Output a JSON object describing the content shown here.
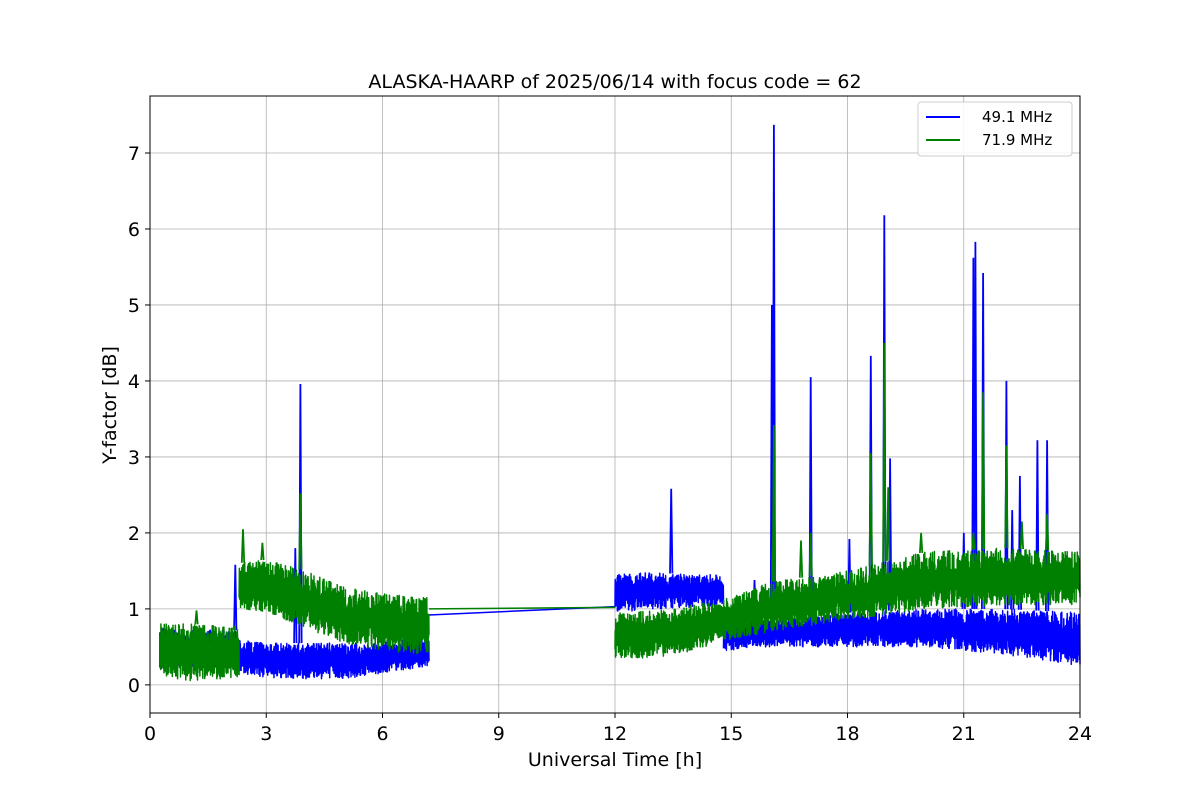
{
  "chart_data": {
    "type": "line",
    "title": "ALASKA-HAARP of 2025/06/14 with focus code = 62",
    "xlabel": "Universal Time [h]",
    "ylabel": "Y-factor [dB]",
    "xlim": [
      0,
      24
    ],
    "ylim": [
      -0.37,
      7.75
    ],
    "xticks": [
      0,
      3,
      6,
      9,
      12,
      15,
      18,
      21,
      24
    ],
    "yticks": [
      0,
      1,
      2,
      3,
      4,
      5,
      6,
      7
    ],
    "grid": true,
    "legend_position": "top-right",
    "series": [
      {
        "name": "49.1 MHz",
        "color": "#0000ff",
        "band_segments": [
          {
            "x": [
              0.25,
              1.0,
              2.2,
              2.3,
              3.0,
              4.0,
              5.0,
              6.0,
              7.2
            ],
            "lo": [
              0.2,
              0.22,
              0.22,
              0.15,
              0.1,
              0.08,
              0.08,
              0.15,
              0.25
            ],
            "hi": [
              0.75,
              0.72,
              0.72,
              0.6,
              0.55,
              0.55,
              0.55,
              0.58,
              0.62
            ]
          },
          {
            "x": [
              12.0,
              13.0,
              14.0,
              14.8
            ],
            "lo": [
              0.95,
              1.0,
              1.02,
              1.05
            ],
            "hi": [
              1.45,
              1.48,
              1.45,
              1.45
            ]
          },
          {
            "x": [
              14.8,
              16.0,
              18.0,
              20.0,
              22.0,
              24.0
            ],
            "lo": [
              0.45,
              0.5,
              0.5,
              0.5,
              0.4,
              0.25
            ],
            "hi": [
              0.85,
              0.85,
              0.95,
              1.0,
              1.0,
              0.95
            ]
          }
        ],
        "bridge": {
          "x": [
            7.2,
            12.0
          ],
          "y": [
            0.92,
            1.03
          ]
        },
        "spikes": [
          {
            "x": 2.2,
            "y": 1.58
          },
          {
            "x": 3.75,
            "y": 1.8
          },
          {
            "x": 3.88,
            "y": 3.96
          },
          {
            "x": 13.45,
            "y": 2.58
          },
          {
            "x": 15.6,
            "y": 1.38
          },
          {
            "x": 16.05,
            "y": 5.0
          },
          {
            "x": 16.1,
            "y": 7.37
          },
          {
            "x": 17.05,
            "y": 4.05
          },
          {
            "x": 18.05,
            "y": 1.92
          },
          {
            "x": 18.6,
            "y": 4.33
          },
          {
            "x": 18.95,
            "y": 6.18
          },
          {
            "x": 19.1,
            "y": 2.98
          },
          {
            "x": 21.0,
            "y": 2.0
          },
          {
            "x": 21.25,
            "y": 5.62
          },
          {
            "x": 21.3,
            "y": 5.83
          },
          {
            "x": 21.5,
            "y": 5.42
          },
          {
            "x": 22.1,
            "y": 4.0
          },
          {
            "x": 22.25,
            "y": 2.3
          },
          {
            "x": 22.45,
            "y": 2.75
          },
          {
            "x": 22.9,
            "y": 3.22
          },
          {
            "x": 23.15,
            "y": 3.22
          }
        ]
      },
      {
        "name": "71.9 MHz",
        "color": "#008000",
        "band_segments": [
          {
            "x": [
              0.25,
              1.0,
              2.3
            ],
            "lo": [
              0.12,
              0.05,
              0.1
            ],
            "hi": [
              0.82,
              0.8,
              0.78
            ]
          },
          {
            "x": [
              2.3,
              3.0,
              4.0,
              5.0,
              6.0,
              7.2
            ],
            "lo": [
              1.0,
              0.95,
              0.75,
              0.55,
              0.45,
              0.4
            ],
            "hi": [
              1.6,
              1.65,
              1.5,
              1.3,
              1.2,
              1.15
            ]
          },
          {
            "x": [
              12.0,
              13.0,
              14.0,
              15.0,
              16.0,
              18.0,
              20.0,
              22.0,
              24.0
            ],
            "lo": [
              0.35,
              0.35,
              0.45,
              0.6,
              0.7,
              0.85,
              1.0,
              1.05,
              1.05
            ],
            "hi": [
              0.95,
              0.98,
              1.05,
              1.15,
              1.35,
              1.5,
              1.75,
              1.8,
              1.75
            ]
          }
        ],
        "bridge": {
          "x": [
            7.2,
            12.0
          ],
          "y": [
            1.0,
            1.02
          ]
        },
        "spikes": [
          {
            "x": 1.2,
            "y": 0.98
          },
          {
            "x": 2.4,
            "y": 2.05
          },
          {
            "x": 2.9,
            "y": 1.87
          },
          {
            "x": 3.88,
            "y": 2.52
          },
          {
            "x": 16.1,
            "y": 3.42
          },
          {
            "x": 16.8,
            "y": 1.9
          },
          {
            "x": 17.05,
            "y": 2.0
          },
          {
            "x": 18.6,
            "y": 3.05
          },
          {
            "x": 18.95,
            "y": 4.5
          },
          {
            "x": 19.05,
            "y": 2.6
          },
          {
            "x": 19.9,
            "y": 2.0
          },
          {
            "x": 21.25,
            "y": 2.0
          },
          {
            "x": 21.5,
            "y": 3.85
          },
          {
            "x": 22.1,
            "y": 3.15
          },
          {
            "x": 22.5,
            "y": 2.15
          },
          {
            "x": 23.15,
            "y": 2.25
          }
        ]
      }
    ]
  }
}
